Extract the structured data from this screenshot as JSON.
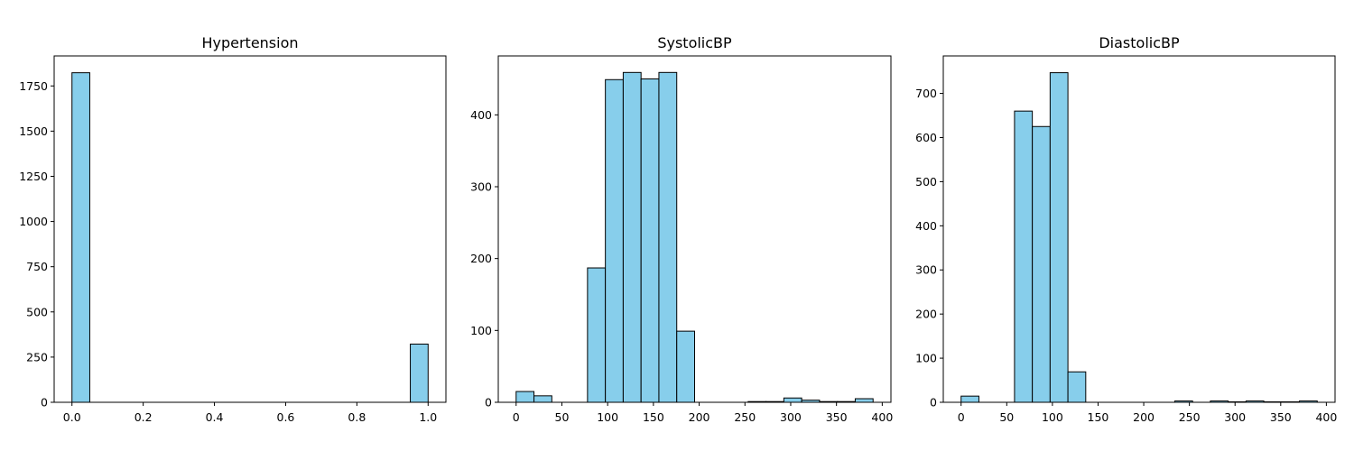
{
  "colors": {
    "bar_fill": "#87CEEB",
    "bar_edge": "#000000",
    "axes": "#000000",
    "background": "#FFFFFF"
  },
  "chart_data": [
    {
      "type": "bar",
      "title": "Hypertension",
      "xlim": [
        -0.05,
        1.05
      ],
      "ylim": [
        0,
        1916
      ],
      "x_ticks": [
        0.0,
        0.2,
        0.4,
        0.6,
        0.8,
        1.0
      ],
      "x_tick_labels": [
        "0.0",
        "0.2",
        "0.4",
        "0.6",
        "0.8",
        "1.0"
      ],
      "y_ticks": [
        0,
        250,
        500,
        750,
        1000,
        1250,
        1500,
        1750
      ],
      "y_tick_labels": [
        "0",
        "250",
        "500",
        "750",
        "1000",
        "1250",
        "1500",
        "1750"
      ],
      "bins": [
        {
          "x0": 0.0,
          "x1": 0.05,
          "count": 1823
        },
        {
          "x0": 0.95,
          "x1": 1.0,
          "count": 322
        }
      ]
    },
    {
      "type": "bar",
      "title": "SystolicBP",
      "xlim": [
        -19.5,
        409.5
      ],
      "ylim": [
        0,
        482
      ],
      "x_ticks": [
        0,
        50,
        100,
        150,
        200,
        250,
        300,
        350,
        400
      ],
      "x_tick_labels": [
        "0",
        "50",
        "100",
        "150",
        "200",
        "250",
        "300",
        "350",
        "400"
      ],
      "y_ticks": [
        0,
        100,
        200,
        300,
        400
      ],
      "y_tick_labels": [
        "0",
        "100",
        "200",
        "300",
        "400"
      ],
      "bins": [
        {
          "x0": 0,
          "x1": 19.5,
          "count": 15
        },
        {
          "x0": 19.5,
          "x1": 39,
          "count": 9
        },
        {
          "x0": 78,
          "x1": 97.5,
          "count": 187
        },
        {
          "x0": 97.5,
          "x1": 117,
          "count": 449
        },
        {
          "x0": 117,
          "x1": 136.5,
          "count": 459
        },
        {
          "x0": 136.5,
          "x1": 156,
          "count": 450
        },
        {
          "x0": 156,
          "x1": 175.5,
          "count": 459
        },
        {
          "x0": 175.5,
          "x1": 195,
          "count": 99
        },
        {
          "x0": 253.5,
          "x1": 273,
          "count": 1
        },
        {
          "x0": 273,
          "x1": 292.5,
          "count": 1
        },
        {
          "x0": 292.5,
          "x1": 312,
          "count": 6
        },
        {
          "x0": 312,
          "x1": 331.5,
          "count": 3
        },
        {
          "x0": 331.5,
          "x1": 351,
          "count": 1
        },
        {
          "x0": 351,
          "x1": 370.5,
          "count": 1
        },
        {
          "x0": 370.5,
          "x1": 390,
          "count": 5
        }
      ]
    },
    {
      "type": "bar",
      "title": "DiastolicBP",
      "xlim": [
        -19.5,
        409.5
      ],
      "ylim": [
        0,
        785
      ],
      "x_ticks": [
        0,
        50,
        100,
        150,
        200,
        250,
        300,
        350,
        400
      ],
      "x_tick_labels": [
        "0",
        "50",
        "100",
        "150",
        "200",
        "250",
        "300",
        "350",
        "400"
      ],
      "y_ticks": [
        0,
        100,
        200,
        300,
        400,
        500,
        600,
        700
      ],
      "y_tick_labels": [
        "0",
        "100",
        "200",
        "300",
        "400",
        "500",
        "600",
        "700"
      ],
      "bins": [
        {
          "x0": 0,
          "x1": 19.5,
          "count": 14
        },
        {
          "x0": 58.5,
          "x1": 78,
          "count": 660
        },
        {
          "x0": 78,
          "x1": 97.5,
          "count": 625
        },
        {
          "x0": 97.5,
          "x1": 117,
          "count": 747
        },
        {
          "x0": 117,
          "x1": 136.5,
          "count": 69
        },
        {
          "x0": 234,
          "x1": 253.5,
          "count": 3
        },
        {
          "x0": 273,
          "x1": 292.5,
          "count": 3
        },
        {
          "x0": 292.5,
          "x1": 312,
          "count": 1
        },
        {
          "x0": 312,
          "x1": 331.5,
          "count": 3
        },
        {
          "x0": 331.5,
          "x1": 351,
          "count": 1
        },
        {
          "x0": 351,
          "x1": 370.5,
          "count": 1
        },
        {
          "x0": 370.5,
          "x1": 390,
          "count": 3
        }
      ]
    }
  ]
}
